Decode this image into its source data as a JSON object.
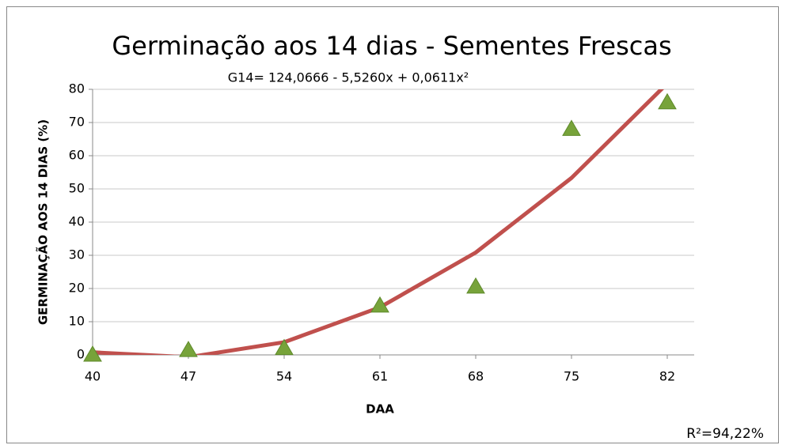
{
  "chart_data": {
    "type": "scatter",
    "title": "Germinação aos 14 dias - Sementes Frescas",
    "subtitle": "G14= 124,0666 - 5,5260x + 0,0611x²",
    "x_label": "DAA",
    "y_label": "GERMINAÇÃO AOS 14 DIAS (%)",
    "annotation": "R²=94,22%",
    "x": [
      40,
      47,
      54,
      61,
      68,
      75,
      82
    ],
    "series": [
      {
        "color": "#77a33a",
        "style": "markers",
        "marker": "triangle",
        "values": [
          0,
          1.4,
          2,
          14.8,
          20.5,
          68,
          76
        ]
      },
      {
        "color": "#c0504d",
        "style": "line",
        "values": [
          0.79,
          -0.69,
          3.83,
          14.33,
          30.83,
          53.3,
          81.77
        ]
      }
    ],
    "xlim": [
      40,
      82
    ],
    "xticks": [
      40,
      47,
      54,
      61,
      68,
      75,
      82
    ],
    "ylim": [
      0,
      80
    ],
    "yticks": [
      0,
      10,
      20,
      30,
      40,
      50,
      60,
      70,
      80
    ],
    "grid": true
  }
}
